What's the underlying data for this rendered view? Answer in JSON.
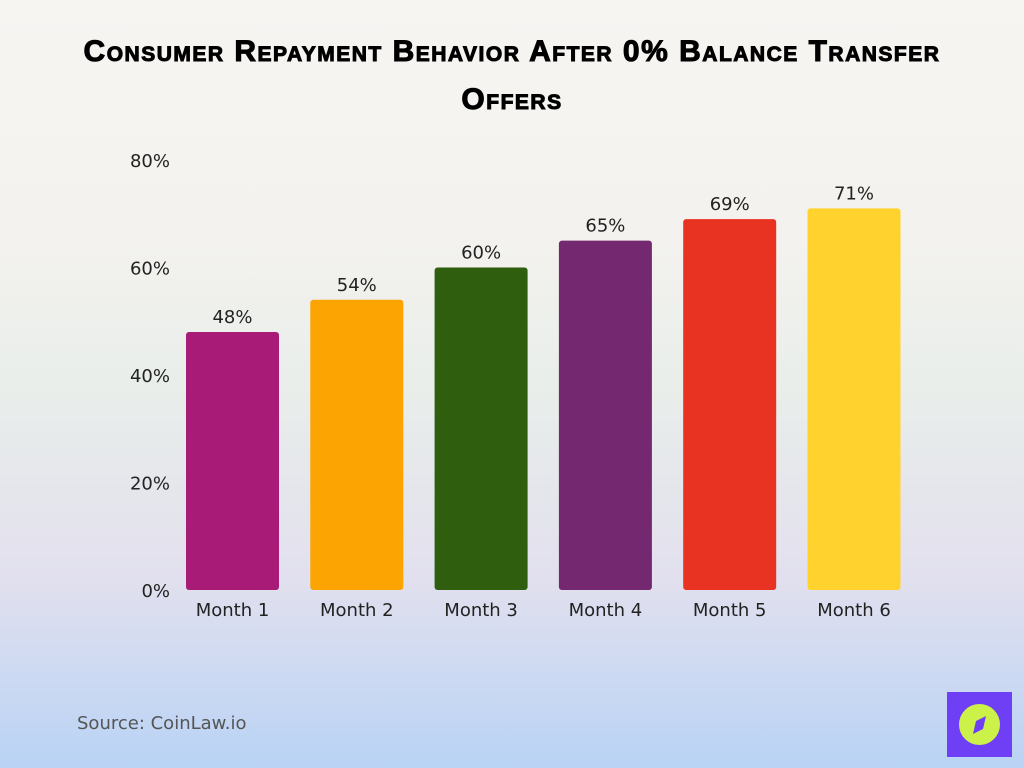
{
  "chart_data": {
    "type": "bar",
    "title": "Consumer Repayment Behavior After 0% Balance Transfer Offers",
    "categories": [
      "Month 1",
      "Month 2",
      "Month 3",
      "Month 4",
      "Month 5",
      "Month 6"
    ],
    "values": [
      48,
      54,
      60,
      65,
      69,
      71
    ],
    "data_labels": [
      "48%",
      "54%",
      "60%",
      "65%",
      "69%",
      "71%"
    ],
    "colors": [
      "#a81c78",
      "#fba402",
      "#2f5e0f",
      "#73286f",
      "#e83222",
      "#ffd22e"
    ],
    "yticks": [
      "0%",
      "20%",
      "40%",
      "60%",
      "80%"
    ],
    "ytick_values": [
      0,
      20,
      40,
      60,
      80
    ],
    "ylim": [
      0,
      80
    ],
    "xlabel": "",
    "ylabel": "",
    "grid": false,
    "legend": "none"
  },
  "source": "Source: CoinLaw.io",
  "logo": {
    "icon": "compass-icon",
    "colors": [
      "#6f3ff5",
      "#ccf24a"
    ]
  }
}
